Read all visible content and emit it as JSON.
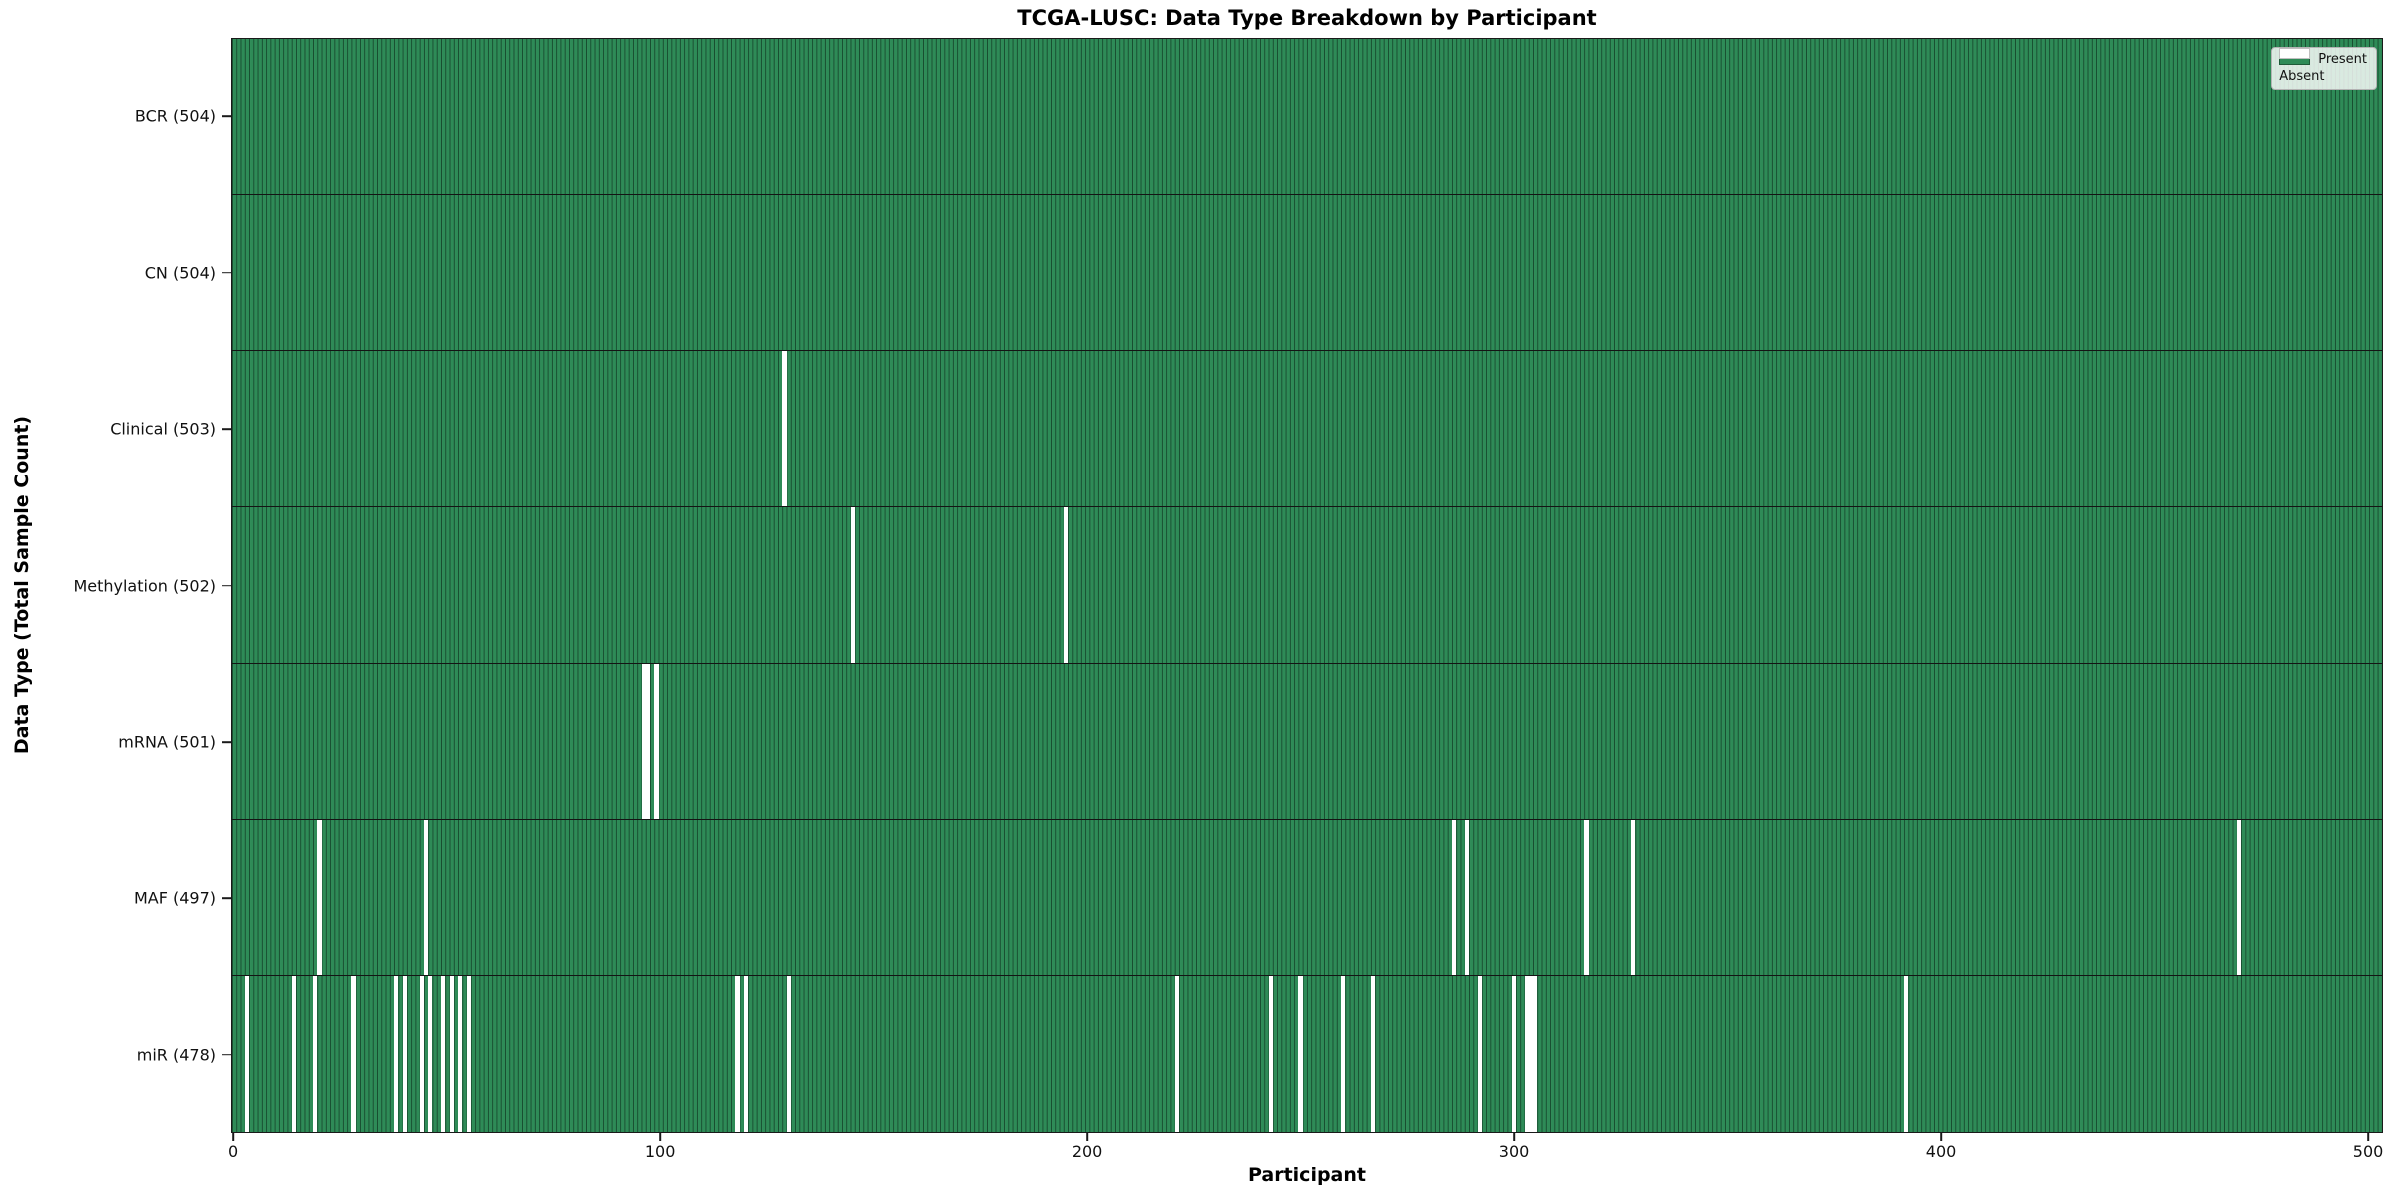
{
  "colors": {
    "present": "#2e8b57",
    "absent": "#ffffff",
    "bar_edge": "rgba(8,34,20,0.6)",
    "axis": "#1a1a1a"
  },
  "chart_data": {
    "type": "heatmap",
    "title": "TCGA-LUSC: Data Type Breakdown by Participant",
    "xlabel": "Participant",
    "ylabel": "Data Type (Total Sample Count)",
    "n_participants": 504,
    "x_ticks": [
      0,
      100,
      200,
      300,
      400,
      500
    ],
    "xlim": [
      0,
      504
    ],
    "grid": false,
    "legend_position": "upper right",
    "legend": [
      {
        "label": "Present",
        "color": "#2e8b57"
      },
      {
        "label": "Absent",
        "color": "#ffffff"
      }
    ],
    "rows": [
      {
        "key": "bcr",
        "label": "BCR (504)",
        "present_count": 504,
        "absent_indices": []
      },
      {
        "key": "cn",
        "label": "CN (504)",
        "present_count": 504,
        "absent_indices": []
      },
      {
        "key": "clinical",
        "label": "Clinical (503)",
        "present_count": 503,
        "absent_indices": [
          129
        ]
      },
      {
        "key": "methylation",
        "label": "Methylation (502)",
        "present_count": 502,
        "absent_indices": [
          145,
          195
        ]
      },
      {
        "key": "mrna",
        "label": "mRNA (501)",
        "present_count": 501,
        "absent_indices": [
          96,
          97,
          99
        ]
      },
      {
        "key": "maf",
        "label": "MAF (497)",
        "present_count": 497,
        "absent_indices": [
          20,
          45,
          286,
          289,
          317,
          328,
          470
        ]
      },
      {
        "key": "mir",
        "label": "miR (478)",
        "present_count": 478,
        "absent_indices": [
          3,
          14,
          19,
          28,
          38,
          40,
          44,
          46,
          49,
          51,
          53,
          55,
          118,
          120,
          130,
          221,
          243,
          250,
          260,
          267,
          292,
          300,
          303,
          304,
          305,
          392
        ]
      }
    ]
  }
}
